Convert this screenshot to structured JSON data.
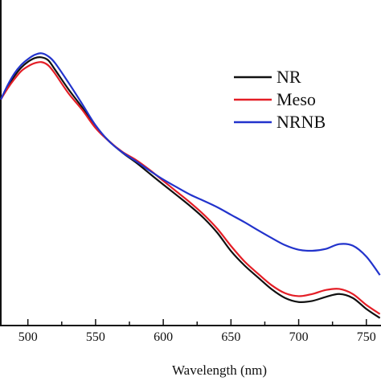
{
  "chart_data": {
    "type": "line",
    "title": "",
    "xlabel": "Wavelength (nm)",
    "ylabel": "",
    "xlim": [
      480,
      762
    ],
    "ylim": [
      0,
      1
    ],
    "x_ticks": [
      500,
      550,
      600,
      650,
      700,
      750
    ],
    "x_tick_labels": [
      "500",
      "550",
      "600",
      "650",
      "700",
      "750"
    ],
    "grid": false,
    "legend_position": "top-right",
    "series": [
      {
        "name": "NR",
        "color": "#111111",
        "x": [
          480,
          485,
          490,
          495,
          500,
          505,
          510,
          515,
          520,
          530,
          540,
          550,
          560,
          570,
          580,
          590,
          600,
          610,
          620,
          630,
          640,
          650,
          660,
          670,
          680,
          690,
          700,
          710,
          720,
          730,
          740,
          750,
          760
        ],
        "y": [
          0.808,
          0.856,
          0.895,
          0.927,
          0.949,
          0.963,
          0.966,
          0.955,
          0.92,
          0.846,
          0.779,
          0.705,
          0.652,
          0.608,
          0.571,
          0.53,
          0.489,
          0.449,
          0.408,
          0.363,
          0.308,
          0.24,
          0.186,
          0.141,
          0.097,
          0.064,
          0.049,
          0.053,
          0.068,
          0.079,
          0.064,
          0.023,
          -0.011
        ]
      },
      {
        "name": "Meso",
        "color": "#e41e26",
        "x": [
          480,
          485,
          490,
          495,
          500,
          505,
          510,
          515,
          520,
          530,
          540,
          550,
          560,
          570,
          580,
          590,
          600,
          610,
          620,
          630,
          640,
          650,
          660,
          670,
          680,
          690,
          700,
          710,
          720,
          730,
          740,
          750,
          760
        ],
        "y": [
          0.808,
          0.849,
          0.884,
          0.914,
          0.932,
          0.944,
          0.948,
          0.936,
          0.905,
          0.831,
          0.77,
          0.701,
          0.651,
          0.611,
          0.581,
          0.544,
          0.503,
          0.462,
          0.421,
          0.376,
          0.323,
          0.259,
          0.201,
          0.155,
          0.112,
          0.082,
          0.071,
          0.079,
          0.094,
          0.098,
          0.079,
          0.038,
          0.004
        ]
      },
      {
        "name": "NRNB",
        "color": "#2233cc",
        "x": [
          480,
          485,
          490,
          495,
          500,
          505,
          510,
          515,
          520,
          530,
          540,
          550,
          560,
          570,
          580,
          590,
          600,
          610,
          620,
          630,
          640,
          650,
          660,
          670,
          680,
          690,
          700,
          710,
          720,
          730,
          740,
          750,
          760
        ],
        "y": [
          0.808,
          0.861,
          0.905,
          0.937,
          0.959,
          0.975,
          0.981,
          0.97,
          0.945,
          0.871,
          0.792,
          0.711,
          0.651,
          0.609,
          0.576,
          0.541,
          0.508,
          0.479,
          0.451,
          0.428,
          0.404,
          0.376,
          0.348,
          0.318,
          0.289,
          0.262,
          0.245,
          0.241,
          0.248,
          0.266,
          0.26,
          0.219,
          0.15
        ]
      }
    ]
  }
}
